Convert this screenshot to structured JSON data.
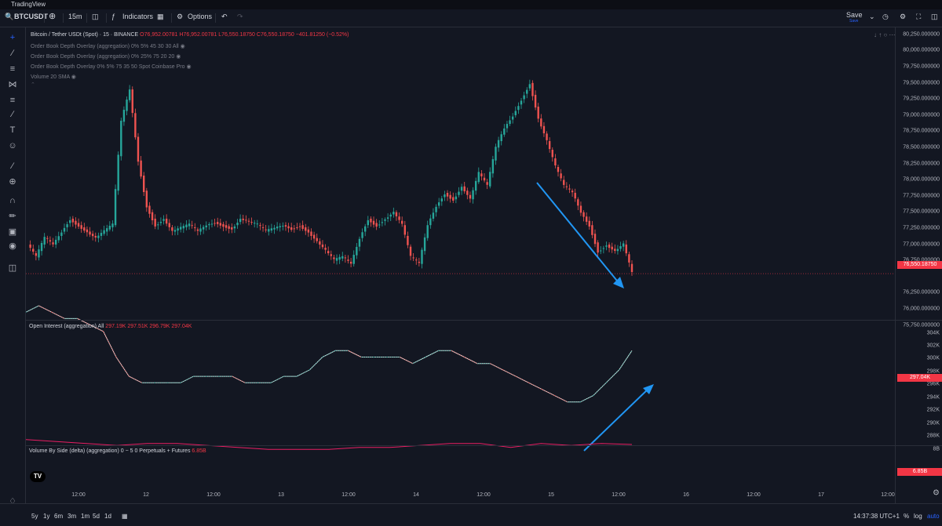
{
  "app": {
    "title": "TradingView"
  },
  "toolbar": {
    "symbol": "BTCUSDT",
    "interval": "15m",
    "indicators_label": "Indicators",
    "options_label": "Options",
    "save_label": "Save",
    "save_sub": "Save"
  },
  "legend": {
    "main_title": "Bitcoin / Tether USDt (Spot) · 15 · BINANCE",
    "o": "O76,952.00781",
    "h": "H76,952.00781",
    "l": "L76,550.18750",
    "c": "C76,550.18750",
    "chg": "−401.81250 (−0.52%)",
    "overlay1": "Order Book Depth Overlay (aggregation) 0% 5% 45 30 30 All",
    "overlay2": "Order Book Depth Overlay (aggregation) 0% 25% 75 20 20",
    "overlay3": "Order Book Depth Overlay 0% 5% 75 35 50 Spot Coinbase Pro",
    "volume": "Volume 20 SMA",
    "oi_title": "Open Interest (aggregation) All",
    "oi_vals": "297.19K 297.51K 296.79K 297.04K",
    "vbs_title": "Volume By Side (delta) (aggregation) 0 − 5 0 Perpetuals + Futures",
    "vbs_val": "6.85B"
  },
  "price_axis": {
    "ticks": [
      "80,250.000000",
      "80,000.000000",
      "79,750.000000",
      "79,500.000000",
      "79,250.000000",
      "79,000.000000",
      "78,750.000000",
      "78,500.000000",
      "78,250.000000",
      "78,000.000000",
      "77,750.000000",
      "77,500.000000",
      "77,250.000000",
      "77,000.000000",
      "76,750.000000",
      "76,250.000000",
      "76,000.000000",
      "75,750.000000"
    ],
    "last_price": "76,550.18750",
    "oi_ticks": [
      "304K",
      "302K",
      "300K",
      "298K",
      "296K",
      "294K",
      "292K",
      "290K",
      "288K"
    ],
    "oi_last": "297.04K",
    "vbs_ticks": [
      "8B"
    ],
    "vbs_last": "6.85B"
  },
  "time_axis": [
    "12:00",
    "12",
    "12:00",
    "13",
    "12:00",
    "14",
    "12:00",
    "15",
    "12:00",
    "16",
    "12:00",
    "17",
    "12:00"
  ],
  "bottom": {
    "ranges": [
      "5y",
      "1y",
      "6m",
      "3m",
      "1m",
      "5d",
      "1d"
    ],
    "clock": "14:37:38 UTC+1",
    "pct": "%",
    "log": "log",
    "auto": "auto"
  },
  "colors": {
    "up": "#26a69a",
    "down": "#ef5350",
    "accent": "#2962ff",
    "arrow": "#2196f3",
    "oi_line": "#e0e0e0",
    "vbs_line": "#e91e63"
  },
  "chart_data": {
    "type": "line",
    "series": [
      {
        "values": [
          77000,
          76800,
          77100,
          77000,
          77200,
          77400,
          77300,
          77200,
          77100,
          77200,
          77300,
          78900,
          79400,
          78300,
          77600,
          77300,
          77400,
          77200,
          77250,
          77300,
          77200,
          77300,
          77350,
          77300,
          77250,
          77400,
          77350,
          77300,
          77200,
          77250,
          77300,
          77250,
          77300,
          77200,
          77050,
          76900,
          76750,
          76800,
          76700,
          77100,
          77400,
          77300,
          77400,
          77500,
          77300,
          76800,
          76700,
          77300,
          77600,
          77800,
          77700,
          77900,
          77700,
          78100,
          77900,
          78500,
          78800,
          79000,
          79250,
          79500,
          78950,
          78600,
          78200,
          77900,
          77800,
          77500,
          77300,
          76900,
          77000,
          76900,
          77000,
          76550
        ]
      },
      {
        "values": [
          303,
          304,
          303,
          302,
          302,
          301,
          300,
          296,
          293,
          292,
          292,
          292,
          292,
          293,
          293,
          293,
          293,
          292,
          292,
          292,
          293,
          293,
          294,
          296,
          297,
          297,
          296,
          296,
          296,
          296,
          295,
          296,
          297,
          297,
          296,
          295,
          295,
          294,
          293,
          292,
          291,
          290,
          289,
          289,
          290,
          292,
          294,
          297
        ]
      },
      {
        "values": [
          7.1,
          7.0,
          6.9,
          6.8,
          6.9,
          6.9,
          6.8,
          6.7,
          6.6,
          6.6,
          6.6,
          6.7,
          6.7,
          6.8,
          6.9,
          6.9,
          6.7,
          6.9,
          6.8,
          6.9,
          6.85
        ]
      }
    ]
  }
}
